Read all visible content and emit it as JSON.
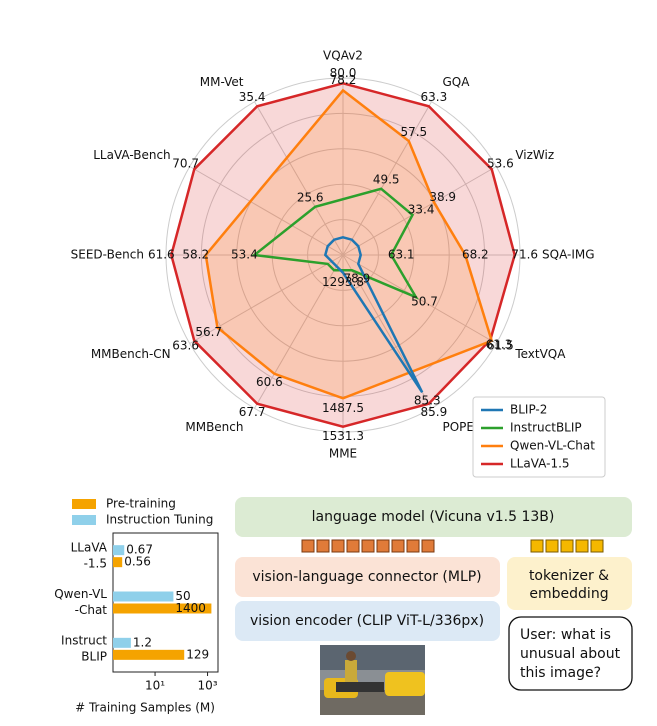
{
  "chart_data": [
    {
      "type": "radar",
      "axes": [
        "VQAv2",
        "GQA",
        "VizWiz",
        "SQA-IMG",
        "TextVQA",
        "POPE",
        "MME",
        "MMBench",
        "MMBench-CN",
        "SEED-Bench",
        "LLaVA-Bench",
        "MM-Vet"
      ],
      "series": [
        {
          "name": "BLIP-2",
          "color": "#1f77b4",
          "filled": false,
          "values": [
            41.0,
            41.0,
            19.6,
            61.0,
            42.5,
            85.3,
            1293.8,
            null,
            null,
            46.4,
            38.1,
            22.4
          ],
          "value_labels": [
            null,
            null,
            null,
            null,
            null,
            "85.3",
            "1293.8",
            null,
            null,
            null,
            null,
            null
          ]
        },
        {
          "name": "InstructBLIP",
          "color": "#2ca02c",
          "filled": false,
          "values": [
            null,
            49.5,
            33.4,
            63.1,
            50.7,
            78.9,
            null,
            36.0,
            23.7,
            53.4,
            null,
            25.6
          ],
          "value_labels": [
            null,
            "49.5",
            "33.4",
            "63.1",
            "50.7",
            "78.9",
            null,
            null,
            null,
            "53.4",
            null,
            "25.6"
          ]
        },
        {
          "name": "Qwen-VL-Chat",
          "color": "#ff7f0e",
          "filled": true,
          "values": [
            78.2,
            57.5,
            38.9,
            68.2,
            61.5,
            null,
            1487.5,
            60.6,
            56.7,
            58.2,
            null,
            null
          ],
          "value_labels": [
            "78.2",
            "57.5",
            "38.9",
            "68.2",
            "61.5",
            null,
            "1487.5",
            "60.6",
            "56.7",
            "58.2",
            null,
            null
          ]
        },
        {
          "name": "LLaVA-1.5",
          "color": "#d62728",
          "filled": true,
          "values": [
            80.0,
            63.3,
            53.6,
            71.6,
            61.3,
            85.9,
            1531.3,
            67.7,
            63.6,
            61.6,
            70.7,
            35.4
          ],
          "value_labels": [
            "80.0",
            "63.3",
            "53.6",
            "71.6",
            "61.3",
            "85.9",
            "1531.3",
            "67.7",
            "63.6",
            "61.6",
            "70.7",
            "35.4"
          ]
        }
      ],
      "grid": true,
      "legend": "lower right"
    },
    {
      "type": "bar",
      "orientation": "horizontal",
      "log_x": true,
      "categories": [
        [
          "LLaVA",
          "-1.5"
        ],
        [
          "Qwen-VL",
          "-Chat"
        ],
        [
          "Instruct",
          "BLIP"
        ]
      ],
      "series": [
        {
          "name": "Pre-training",
          "color": "#f5a300",
          "values": [
            0.56,
            1400,
            129
          ]
        },
        {
          "name": "Instruction Tuning",
          "color": "#8fd0ea",
          "values": [
            0.67,
            50,
            1.2
          ]
        }
      ],
      "xlim": [
        0.25,
        2500
      ],
      "xticks": [
        {
          "value": 10,
          "label": "10¹"
        },
        {
          "value": 1000,
          "label": "10³"
        }
      ],
      "xlabel": "# Training Samples (M)",
      "legend": "upper left"
    }
  ],
  "diagram": {
    "language_model": "language model (Vicuna v1.5 13B)",
    "connector": "vision-language connector (MLP)",
    "vision_encoder": "vision encoder (CLIP ViT-L/336px)",
    "tokenizer": [
      "tokenizer &",
      "embedding"
    ],
    "user_query": [
      "User: what is",
      "unusual about",
      "this image?"
    ]
  }
}
